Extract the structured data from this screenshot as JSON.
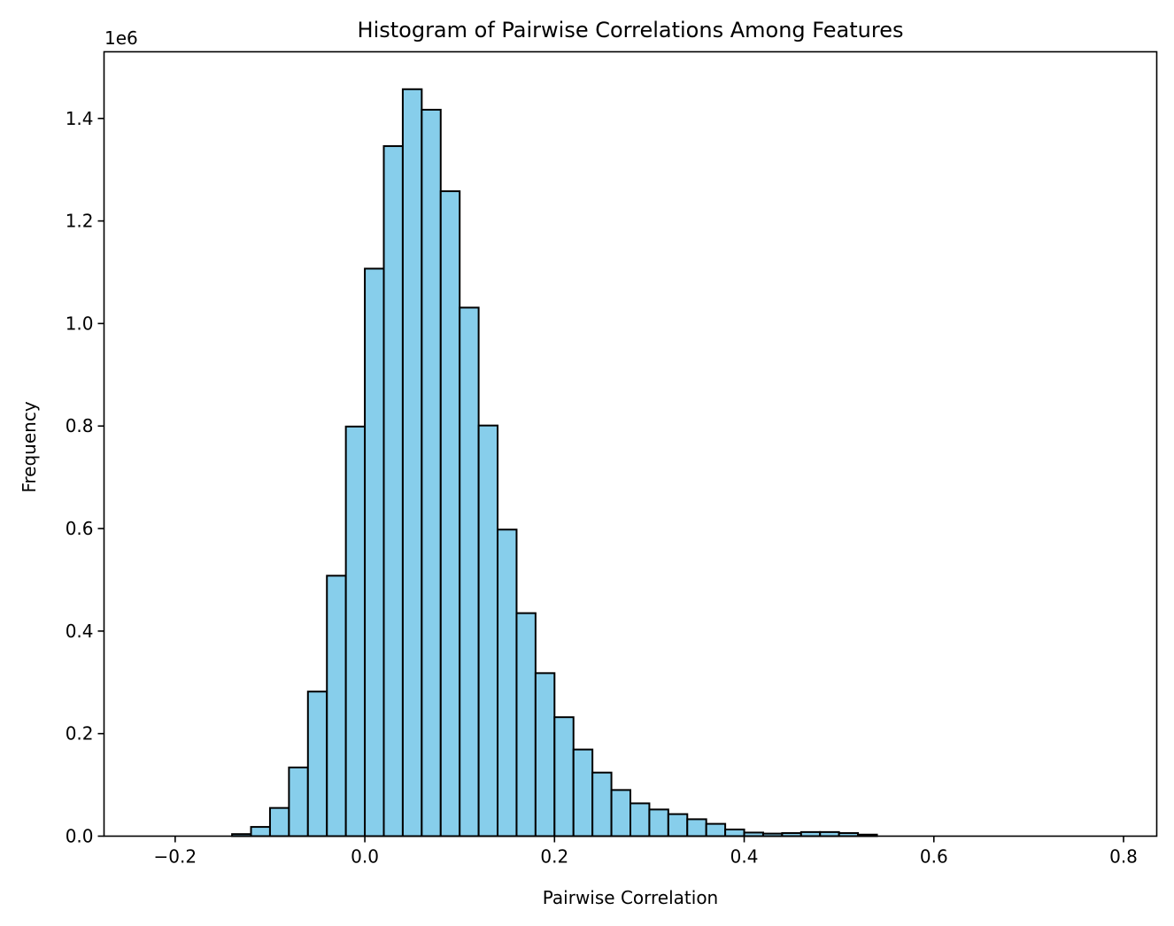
{
  "chart_data": {
    "type": "bar",
    "title": "Histogram of Pairwise Correlations Among Features",
    "xlabel": "Pairwise Correlation",
    "ylabel": "Frequency",
    "y_offset_label": "1e6",
    "xlim": [
      -0.275,
      0.835
    ],
    "ylim": [
      0,
      1.53
    ],
    "y_units": "millions (1e6)",
    "grid": false,
    "legend": "none",
    "bar_color": "#87CEEB",
    "edge_color": "#000000",
    "bin_width": 0.02,
    "bins": [
      {
        "x0": -0.14,
        "value": 0.004
      },
      {
        "x0": -0.12,
        "value": 0.018
      },
      {
        "x0": -0.1,
        "value": 0.055
      },
      {
        "x0": -0.08,
        "value": 0.134
      },
      {
        "x0": -0.06,
        "value": 0.282
      },
      {
        "x0": -0.04,
        "value": 0.508
      },
      {
        "x0": -0.02,
        "value": 0.799
      },
      {
        "x0": 0.0,
        "value": 1.107
      },
      {
        "x0": 0.02,
        "value": 1.346
      },
      {
        "x0": 0.04,
        "value": 1.457
      },
      {
        "x0": 0.06,
        "value": 1.417
      },
      {
        "x0": 0.08,
        "value": 1.258
      },
      {
        "x0": 0.1,
        "value": 1.031
      },
      {
        "x0": 0.12,
        "value": 0.801
      },
      {
        "x0": 0.14,
        "value": 0.598
      },
      {
        "x0": 0.16,
        "value": 0.435
      },
      {
        "x0": 0.18,
        "value": 0.318
      },
      {
        "x0": 0.2,
        "value": 0.232
      },
      {
        "x0": 0.22,
        "value": 0.169
      },
      {
        "x0": 0.24,
        "value": 0.124
      },
      {
        "x0": 0.26,
        "value": 0.09
      },
      {
        "x0": 0.28,
        "value": 0.064
      },
      {
        "x0": 0.3,
        "value": 0.052
      },
      {
        "x0": 0.32,
        "value": 0.043
      },
      {
        "x0": 0.34,
        "value": 0.033
      },
      {
        "x0": 0.36,
        "value": 0.024
      },
      {
        "x0": 0.38,
        "value": 0.013
      },
      {
        "x0": 0.4,
        "value": 0.007
      },
      {
        "x0": 0.42,
        "value": 0.005
      },
      {
        "x0": 0.44,
        "value": 0.006
      },
      {
        "x0": 0.46,
        "value": 0.008
      },
      {
        "x0": 0.48,
        "value": 0.008
      },
      {
        "x0": 0.5,
        "value": 0.006
      },
      {
        "x0": 0.52,
        "value": 0.003
      }
    ],
    "x_ticks": [
      {
        "value": -0.2,
        "label": "−0.2"
      },
      {
        "value": 0.0,
        "label": "0.0"
      },
      {
        "value": 0.2,
        "label": "0.2"
      },
      {
        "value": 0.4,
        "label": "0.4"
      },
      {
        "value": 0.6,
        "label": "0.6"
      },
      {
        "value": 0.8,
        "label": "0.8"
      }
    ],
    "y_ticks": [
      {
        "value": 0.0,
        "label": "0.0"
      },
      {
        "value": 0.2,
        "label": "0.2"
      },
      {
        "value": 0.4,
        "label": "0.4"
      },
      {
        "value": 0.6,
        "label": "0.6"
      },
      {
        "value": 0.8,
        "label": "0.8"
      },
      {
        "value": 1.0,
        "label": "1.0"
      },
      {
        "value": 1.2,
        "label": "1.2"
      },
      {
        "value": 1.4,
        "label": "1.4"
      }
    ]
  }
}
